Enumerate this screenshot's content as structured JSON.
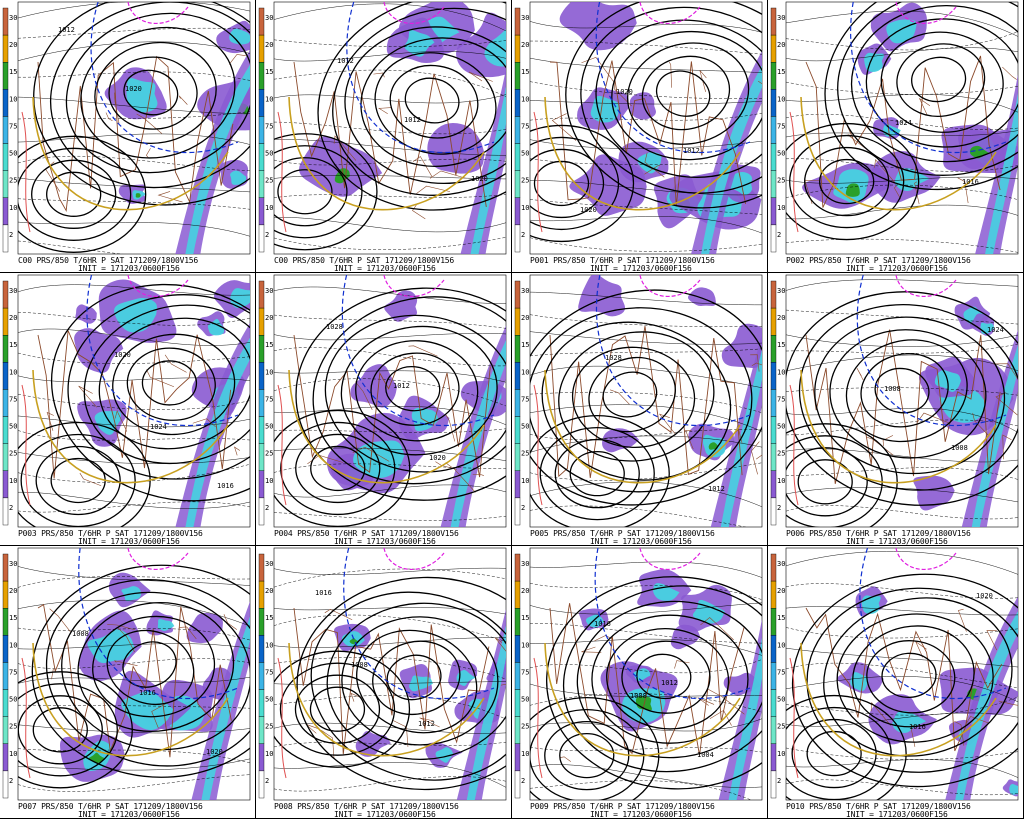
{
  "colorbar": {
    "ticks": [
      "300",
      "200",
      "150",
      "100",
      "75",
      "50",
      "25",
      "10",
      "2"
    ],
    "colors": [
      "#c8643c",
      "#e6a000",
      "#2aa02a",
      "#0a64c8",
      "#3cb4e6",
      "#4adcd0",
      "#6ee6c8",
      "#8a5ad2",
      "#ffffff"
    ]
  },
  "line_colors": {
    "isobar": "#000000",
    "thickness_gold": "#c8a020",
    "temp_blue": "#1030d0",
    "temp_magenta": "#e020e0",
    "temp_red": "#e05050",
    "coast": "#8b4a2b"
  },
  "panels": [
    {
      "id": "C00",
      "line1": "C00 PRS/850 T/6HR P SAT 171209/1800V156",
      "line2": "INIT = 171203/0600F156",
      "labels": [
        "1012",
        "1020"
      ]
    },
    {
      "id": "C00b",
      "line1": "C00 PRS/850 T/6HR P SAT 171209/1800V156",
      "line2": "INIT = 171203/0600F156",
      "labels": [
        "1012",
        "1012",
        "1020"
      ]
    },
    {
      "id": "P01",
      "line1": "P001 PRS/850 T/6HR P SAT 171209/1800V156",
      "line2": "INIT = 171203/0600F156",
      "labels": [
        "1020",
        "1012",
        "1020"
      ]
    },
    {
      "id": "P02",
      "line1": "P002 PRS/850 T/6HR P SAT 171209/1800V156",
      "line2": "INIT = 171203/0600F156",
      "labels": [
        "1024",
        "1016"
      ]
    },
    {
      "id": "P03",
      "line1": "P003 PRS/850 T/6HR P SAT 171209/1800V156",
      "line2": "INIT = 171203/0600F156",
      "labels": [
        "1024",
        "1016",
        "1020"
      ]
    },
    {
      "id": "P04",
      "line1": "P004 PRS/850 T/6HR P SAT 171209/1800V156",
      "line2": "INIT = 171203/0600F156",
      "labels": [
        "1020",
        "1028",
        "1012"
      ]
    },
    {
      "id": "P05",
      "line1": "P005 PRS/850 T/6HR P SAT 171209/1800V156",
      "line2": "INIT = 171203/0600F156",
      "labels": [
        "1012",
        "1028"
      ]
    },
    {
      "id": "P06",
      "line1": "P006 PRS/850 T/6HR P SAT 171209/1800V156",
      "line2": "INIT = 171203/0600F156",
      "labels": [
        "1024",
        "1008",
        "1008"
      ]
    },
    {
      "id": "P07",
      "line1": "P007 PRS/850 T/6HR P SAT 171209/1800V156",
      "line2": "INIT = 171203/0600F156",
      "labels": [
        "1008",
        "1016",
        "1020"
      ]
    },
    {
      "id": "P08",
      "line1": "P008 PRS/850 T/6HR P SAT 171209/1800V156",
      "line2": "INIT = 171203/0600F156",
      "labels": [
        "1008",
        "1012",
        "1016"
      ]
    },
    {
      "id": "P09",
      "line1": "P009 PRS/850 T/6HR P SAT 171209/1800V156",
      "line2": "INIT = 171203/0600F156",
      "labels": [
        "1008",
        "1004",
        "1016",
        "1012"
      ]
    },
    {
      "id": "P10",
      "line1": "P010 PRS/850 T/6HR P SAT 171209/1800V156",
      "line2": "INIT = 171203/0600F156",
      "labels": [
        "1016",
        "1020"
      ]
    }
  ]
}
